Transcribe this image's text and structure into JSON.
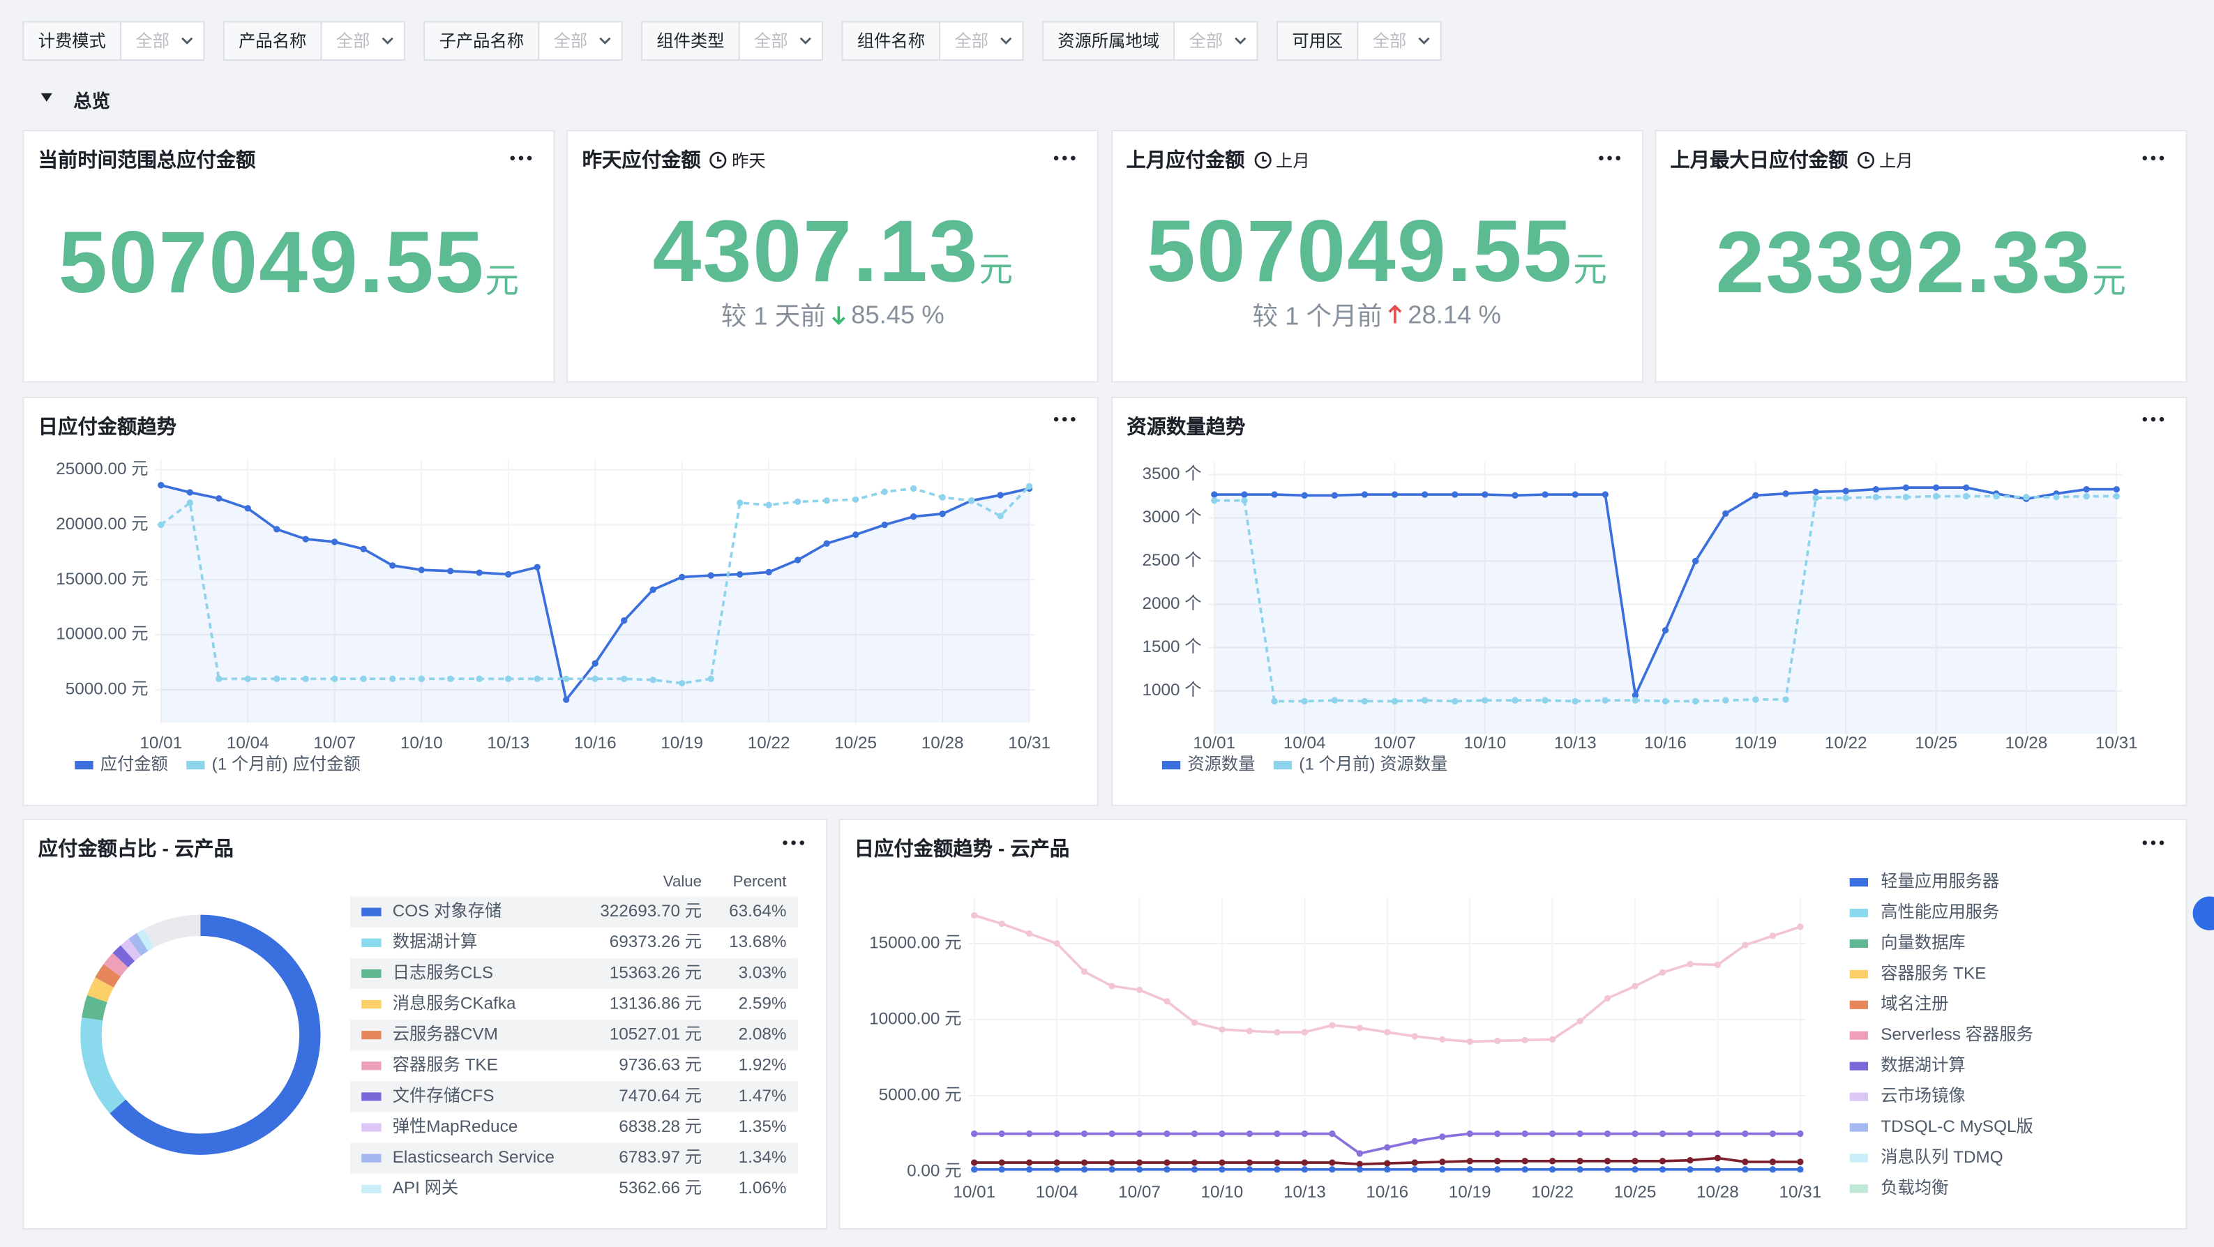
{
  "filters": [
    {
      "label": "计费模式",
      "value": "全部"
    },
    {
      "label": "产品名称",
      "value": "全部"
    },
    {
      "label": "子产品名称",
      "value": "全部"
    },
    {
      "label": "组件类型",
      "value": "全部"
    },
    {
      "label": "组件名称",
      "value": "全部"
    },
    {
      "label": "资源所属地域",
      "value": "全部"
    },
    {
      "label": "可用区",
      "value": "全部"
    }
  ],
  "section": "总览",
  "cards": [
    {
      "title": "当前时间范围总应付金额",
      "value": 507049.55,
      "unit": "元"
    },
    {
      "title": "昨天应付金额",
      "tag": "昨天",
      "value": 4307.13,
      "unit": "元",
      "compare": "较 1 天前",
      "direction": "down",
      "change": "85.45 %"
    },
    {
      "title": "上月应付金额",
      "tag": "上月",
      "value": 507049.55,
      "unit": "元",
      "compare": "较 1 个月前",
      "direction": "up",
      "change": "28.14 %"
    },
    {
      "title": "上月最大日应付金额",
      "tag": "上月",
      "value": 23392.33,
      "unit": "元"
    }
  ],
  "chart_data": [
    {
      "type": "line",
      "title": "日应付金额趋势",
      "categories": [
        "10/01",
        null,
        null,
        "10/04",
        null,
        null,
        "10/07",
        null,
        null,
        "10/10",
        null,
        null,
        "10/13",
        null,
        null,
        "10/16",
        null,
        null,
        "10/19",
        null,
        null,
        "10/22",
        null,
        null,
        "10/25",
        null,
        null,
        "10/28",
        null,
        null,
        "10/31"
      ],
      "series": [
        {
          "name": "应付金额",
          "color": "#3b6fdc",
          "area": true,
          "values": [
            23600,
            22950,
            22400,
            21500,
            19600,
            18700,
            18450,
            17800,
            16300,
            15900,
            15800,
            15650,
            15500,
            16150,
            4100,
            7400,
            11300,
            14100,
            15250,
            15400,
            15500,
            15700,
            16800,
            18300,
            19100,
            20000,
            20750,
            21000,
            22200,
            22700,
            23300
          ]
        },
        {
          "name": "(1 个月前) 应付金额",
          "color": "#8dd3ec",
          "dashed": true,
          "values": [
            20000,
            22000,
            6000,
            6000,
            6000,
            6000,
            6000,
            6000,
            6000,
            6000,
            6000,
            6000,
            6000,
            6000,
            6000,
            6000,
            6000,
            5900,
            5600,
            6000,
            22000,
            21800,
            22100,
            22200,
            22300,
            23000,
            23300,
            22500,
            22200,
            20800,
            23500
          ]
        }
      ],
      "ylim": [
        2000,
        26000
      ],
      "yticks": [
        {
          "value": 5000,
          "label": "5000.00 元"
        },
        {
          "value": 10000,
          "label": "10000.00 元"
        },
        {
          "value": 15000,
          "label": "15000.00 元"
        },
        {
          "value": 20000,
          "label": "20000.00 元"
        },
        {
          "value": 25000,
          "label": "25000.00 元"
        }
      ],
      "grid": true
    },
    {
      "type": "line",
      "title": "资源数量趋势",
      "categories": [
        "10/01",
        null,
        null,
        "10/04",
        null,
        null,
        "10/07",
        null,
        null,
        "10/10",
        null,
        null,
        "10/13",
        null,
        null,
        "10/16",
        null,
        null,
        "10/19",
        null,
        null,
        "10/22",
        null,
        null,
        "10/25",
        null,
        null,
        "10/28",
        null,
        null,
        "10/31"
      ],
      "series": [
        {
          "name": "资源数量",
          "color": "#3b6fdc",
          "area": true,
          "values": [
            3270,
            3270,
            3270,
            3260,
            3260,
            3270,
            3270,
            3270,
            3270,
            3270,
            3260,
            3270,
            3270,
            3270,
            950,
            1700,
            2500,
            3050,
            3260,
            3280,
            3300,
            3310,
            3330,
            3350,
            3350,
            3350,
            3280,
            3220,
            3280,
            3330,
            3330
          ]
        },
        {
          "name": "(1 个月前) 资源数量",
          "color": "#8dd3ec",
          "dashed": true,
          "values": [
            3200,
            3200,
            880,
            880,
            890,
            880,
            880,
            890,
            880,
            890,
            890,
            890,
            880,
            890,
            890,
            880,
            880,
            890,
            900,
            900,
            3230,
            3230,
            3240,
            3240,
            3250,
            3250,
            3250,
            3240,
            3240,
            3250,
            3250
          ]
        }
      ],
      "ylim": [
        500,
        3650
      ],
      "yticks": [
        {
          "value": 1000,
          "label": "1000 个"
        },
        {
          "value": 1500,
          "label": "1500 个"
        },
        {
          "value": 2000,
          "label": "2000 个"
        },
        {
          "value": 2500,
          "label": "2500 个"
        },
        {
          "value": 3000,
          "label": "3000 个"
        },
        {
          "value": 3500,
          "label": "3500 个"
        }
      ],
      "grid": true
    },
    {
      "type": "pie",
      "title": "应付金额占比 - 云产品",
      "columns": [
        "Value",
        "Percent"
      ],
      "categories": [
        "COS 对象存储",
        "数据湖计算",
        "日志服务CLS",
        "消息服务CKafka",
        "云服务器CVM",
        "容器服务 TKE",
        "文件存储CFS",
        "弹性MapReduce",
        "Elasticsearch Service",
        "API 网关"
      ],
      "values": [
        322693.7,
        69373.26,
        15363.26,
        13136.86,
        10527.01,
        9736.63,
        7470.64,
        6838.28,
        6783.97,
        5362.66
      ],
      "value_labels": [
        "322693.70 元",
        "69373.26 元",
        "15363.26 元",
        "13136.86 元",
        "10527.01 元",
        "9736.63 元",
        "7470.64 元",
        "6838.28 元",
        "6783.97 元",
        "5362.66 元"
      ],
      "percent": [
        63.64,
        13.68,
        3.03,
        2.59,
        2.08,
        1.92,
        1.47,
        1.35,
        1.34,
        1.06
      ],
      "percent_labels": [
        "63.64%",
        "13.68%",
        "3.03%",
        "2.59%",
        "2.08%",
        "1.92%",
        "1.47%",
        "1.35%",
        "1.34%",
        "1.06%"
      ],
      "colors": [
        "#3a6fe0",
        "#8ad9ec",
        "#5fb891",
        "#fcd068",
        "#e5875a",
        "#eea0b8",
        "#7b68d8",
        "#ddc6f5",
        "#a3b9f0",
        "#c9eef8"
      ]
    },
    {
      "type": "line",
      "title": "日应付金额趋势 - 云产品",
      "categories": [
        "10/01",
        null,
        null,
        "10/04",
        null,
        null,
        "10/07",
        null,
        null,
        "10/10",
        null,
        null,
        "10/13",
        null,
        null,
        "10/16",
        null,
        null,
        "10/19",
        null,
        null,
        "10/22",
        null,
        null,
        "10/25",
        null,
        null,
        "10/28",
        null,
        null,
        "10/31"
      ],
      "series": [
        {
          "color": "#f3c4d4",
          "values": [
            16850,
            16300,
            15650,
            15000,
            13150,
            12200,
            11950,
            11200,
            9800,
            9350,
            9250,
            9170,
            9170,
            9630,
            9450,
            9170,
            8900,
            8700,
            8550,
            8600,
            8650,
            8700,
            9900,
            11400,
            12200,
            13100,
            13650,
            13600,
            14900,
            15500,
            16100
          ]
        },
        {
          "color": "#8a70dc",
          "values": [
            2500,
            2500,
            2500,
            2500,
            2500,
            2500,
            2500,
            2500,
            2500,
            2500,
            2500,
            2500,
            2500,
            2500,
            1200,
            1600,
            2000,
            2300,
            2500,
            2500,
            2500,
            2500,
            2500,
            2500,
            2500,
            2500,
            2500,
            2500,
            2500,
            2500,
            2500
          ]
        },
        {
          "color": "#7a1f2b",
          "values": [
            600,
            600,
            600,
            600,
            600,
            600,
            600,
            600,
            600,
            600,
            600,
            600,
            600,
            600,
            500,
            550,
            600,
            650,
            700,
            700,
            700,
            700,
            700,
            700,
            700,
            700,
            750,
            900,
            650,
            650,
            650
          ]
        },
        {
          "color": "#3a6fe0",
          "values": [
            150,
            150,
            150,
            150,
            150,
            150,
            150,
            150,
            150,
            150,
            150,
            150,
            150,
            150,
            150,
            150,
            150,
            150,
            150,
            150,
            150,
            150,
            150,
            150,
            150,
            150,
            150,
            150,
            150,
            150,
            150
          ]
        }
      ],
      "legend": [
        {
          "name": "轻量应用服务器",
          "color": "#3a6fe0"
        },
        {
          "name": "高性能应用服务",
          "color": "#8ad9ec"
        },
        {
          "name": "向量数据库",
          "color": "#5fb891"
        },
        {
          "name": "容器服务 TKE",
          "color": "#fcd068"
        },
        {
          "name": "域名注册",
          "color": "#e5875a"
        },
        {
          "name": "Serverless 容器服务",
          "color": "#eea0b8"
        },
        {
          "name": "数据湖计算",
          "color": "#7b68d8"
        },
        {
          "name": "云市场镜像",
          "color": "#ddc6f5"
        },
        {
          "name": "TDSQL-C MySQL版",
          "color": "#a3b9f0"
        },
        {
          "name": "消息队列 TDMQ",
          "color": "#c9eef8"
        },
        {
          "name": "负载均衡",
          "color": "#bfe8d6"
        }
      ],
      "ylim": [
        0,
        18000
      ],
      "yticks": [
        {
          "value": 0,
          "label": "0.00 元"
        },
        {
          "value": 5000,
          "label": "5000.00 元"
        },
        {
          "value": 10000,
          "label": "10000.00 元"
        },
        {
          "value": 15000,
          "label": "15000.00 元"
        }
      ],
      "grid": true
    }
  ]
}
